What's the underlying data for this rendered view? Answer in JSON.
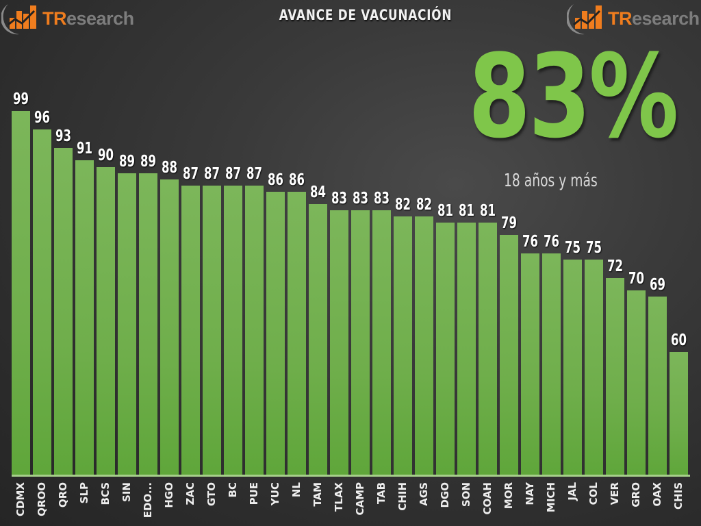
{
  "header": {
    "title": "AVANCE DE VACUNACIÓN",
    "logo_left": {
      "brand_tr": "TR",
      "brand_rest": "esearch",
      "icon": "bar-chart-growth-icon"
    },
    "logo_right": {
      "brand_tr": "TR",
      "brand_rest": "esearch",
      "icon": "bar-chart-growth-icon"
    }
  },
  "highlight": {
    "value": "83%",
    "label": "18 años y más",
    "color": "#7fc64a"
  },
  "colors": {
    "bar": "#6fae4b",
    "background": "#333333",
    "brand_orange": "#f07d1e",
    "brand_gray": "#7d7d7d"
  },
  "chart_data": {
    "type": "bar",
    "title": "AVANCE DE VACUNACIÓN",
    "subtitle": "18 años y más",
    "annotation": "83%",
    "xlabel": "",
    "ylabel": "",
    "categories": [
      "CDMX",
      "QROO",
      "QRO",
      "SLP",
      "BCS",
      "SIN",
      "EDO...",
      "HGO",
      "ZAC",
      "GTO",
      "BC",
      "PUE",
      "YUC",
      "NL",
      "TAM",
      "TLAX",
      "CAMP",
      "TAB",
      "CHIH",
      "AGS",
      "DGO",
      "SON",
      "COAH",
      "MOR",
      "NAY",
      "MICH",
      "JAL",
      "COL",
      "VER",
      "GRO",
      "OAX",
      "CHIS"
    ],
    "values": [
      99,
      96,
      93,
      91,
      90,
      89,
      89,
      88,
      87,
      87,
      87,
      87,
      86,
      86,
      84,
      83,
      83,
      83,
      82,
      82,
      81,
      81,
      81,
      79,
      76,
      76,
      75,
      75,
      72,
      70,
      69,
      60
    ],
    "ylim": [
      40,
      100
    ],
    "grid": false,
    "legend": "none",
    "data_labels": true
  }
}
